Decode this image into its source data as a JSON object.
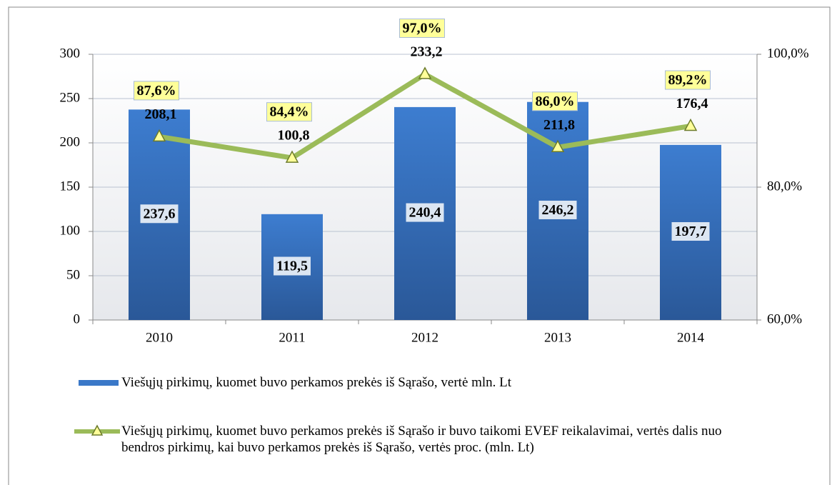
{
  "chart_data": {
    "type": "combo",
    "categories": [
      "2010",
      "2011",
      "2012",
      "2013",
      "2014"
    ],
    "series": [
      {
        "name": "Viešųjų pirkimų, kuomet buvo perkamos prekės iš Sąrašo, vertė mln. Lt",
        "type": "bar",
        "color": "#3a78c8",
        "values": [
          237.6,
          119.5,
          240.4,
          246.2,
          197.7
        ],
        "value_labels": [
          "237,6",
          "119,5",
          "240,4",
          "246,2",
          "197,7"
        ]
      },
      {
        "name": "Viešųjų pirkimų, kuomet buvo perkamos prekės iš Sąrašo ir buvo taikomi EVEF reikalavimai, vertės dalis nuo bendros pirkimų, kai buvo perkamos prekės iš Sąrašo, vertės proc. (mln. Lt)",
        "type": "line",
        "axis": "y2",
        "color": "#9bbb59",
        "values": [
          87.6,
          84.4,
          97.0,
          86.0,
          89.2
        ],
        "value_labels": [
          "87,6%",
          "84,4%",
          "97,0%",
          "86,0%",
          "89,2%"
        ],
        "point_values": [
          208.1,
          100.8,
          233.2,
          211.8,
          176.4
        ],
        "point_value_labels": [
          "208,1",
          "100,8",
          "233,2",
          "211,8",
          "176,4"
        ]
      }
    ],
    "ylim": [
      0,
      300
    ],
    "yticks": [
      0,
      50,
      100,
      150,
      200,
      250,
      300
    ],
    "y2lim": [
      60,
      100
    ],
    "y2ticks": [
      {
        "value": 60,
        "label": "60,0%"
      },
      {
        "value": 80,
        "label": "80,0%"
      },
      {
        "value": 100,
        "label": "100,0%"
      }
    ],
    "grid": true
  }
}
